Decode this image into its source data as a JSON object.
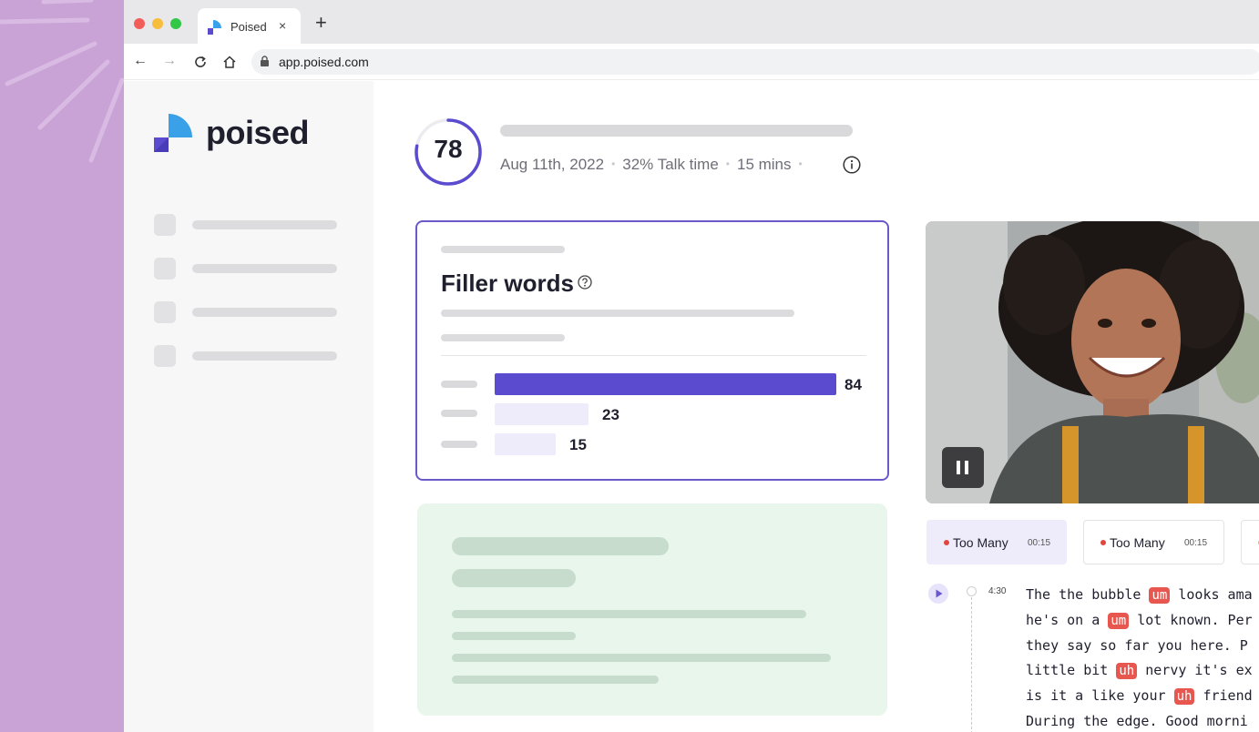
{
  "browser": {
    "tab_title": "Poised",
    "tab_close": "×",
    "new_tab": "+",
    "url": "app.poised.com"
  },
  "app": {
    "logo_text": "poised",
    "score": "78",
    "date": "Aug 11th, 2022",
    "talk_time": "32% Talk time",
    "duration": "15 mins",
    "sep": "•"
  },
  "filler": {
    "title": "Filler words",
    "bars": [
      {
        "value": 84
      },
      {
        "value": 23
      },
      {
        "value": 15
      }
    ],
    "value_labels": [
      "84",
      "23",
      "15"
    ]
  },
  "chips": [
    {
      "label": "Too Many",
      "time": "00:15"
    },
    {
      "label": "Too Many",
      "time": "00:15"
    }
  ],
  "transcript": {
    "timestamp": "4:30",
    "lines": [
      {
        "pre": "The the bubble ",
        "tag": "um",
        "post": " looks ama"
      },
      {
        "pre": "he's on a ",
        "tag": "um",
        "post": " lot known. Per"
      },
      {
        "pre": "they say so far you here. P",
        "tag": "",
        "post": ""
      },
      {
        "pre": "little bit ",
        "tag": "uh",
        "post": " nervy it's ex"
      },
      {
        "pre": "is it a like your ",
        "tag": "uh",
        "post": " friend"
      },
      {
        "pre": "During the edge. Good morni",
        "tag": "",
        "post": ""
      }
    ]
  },
  "colors": {
    "accent": "#6a59c9",
    "bar_primary": "#5b4ccf",
    "bar_light": "#eeecfb",
    "filler_tag": "#e7574f",
    "page_bg": "#c9a3d6"
  }
}
